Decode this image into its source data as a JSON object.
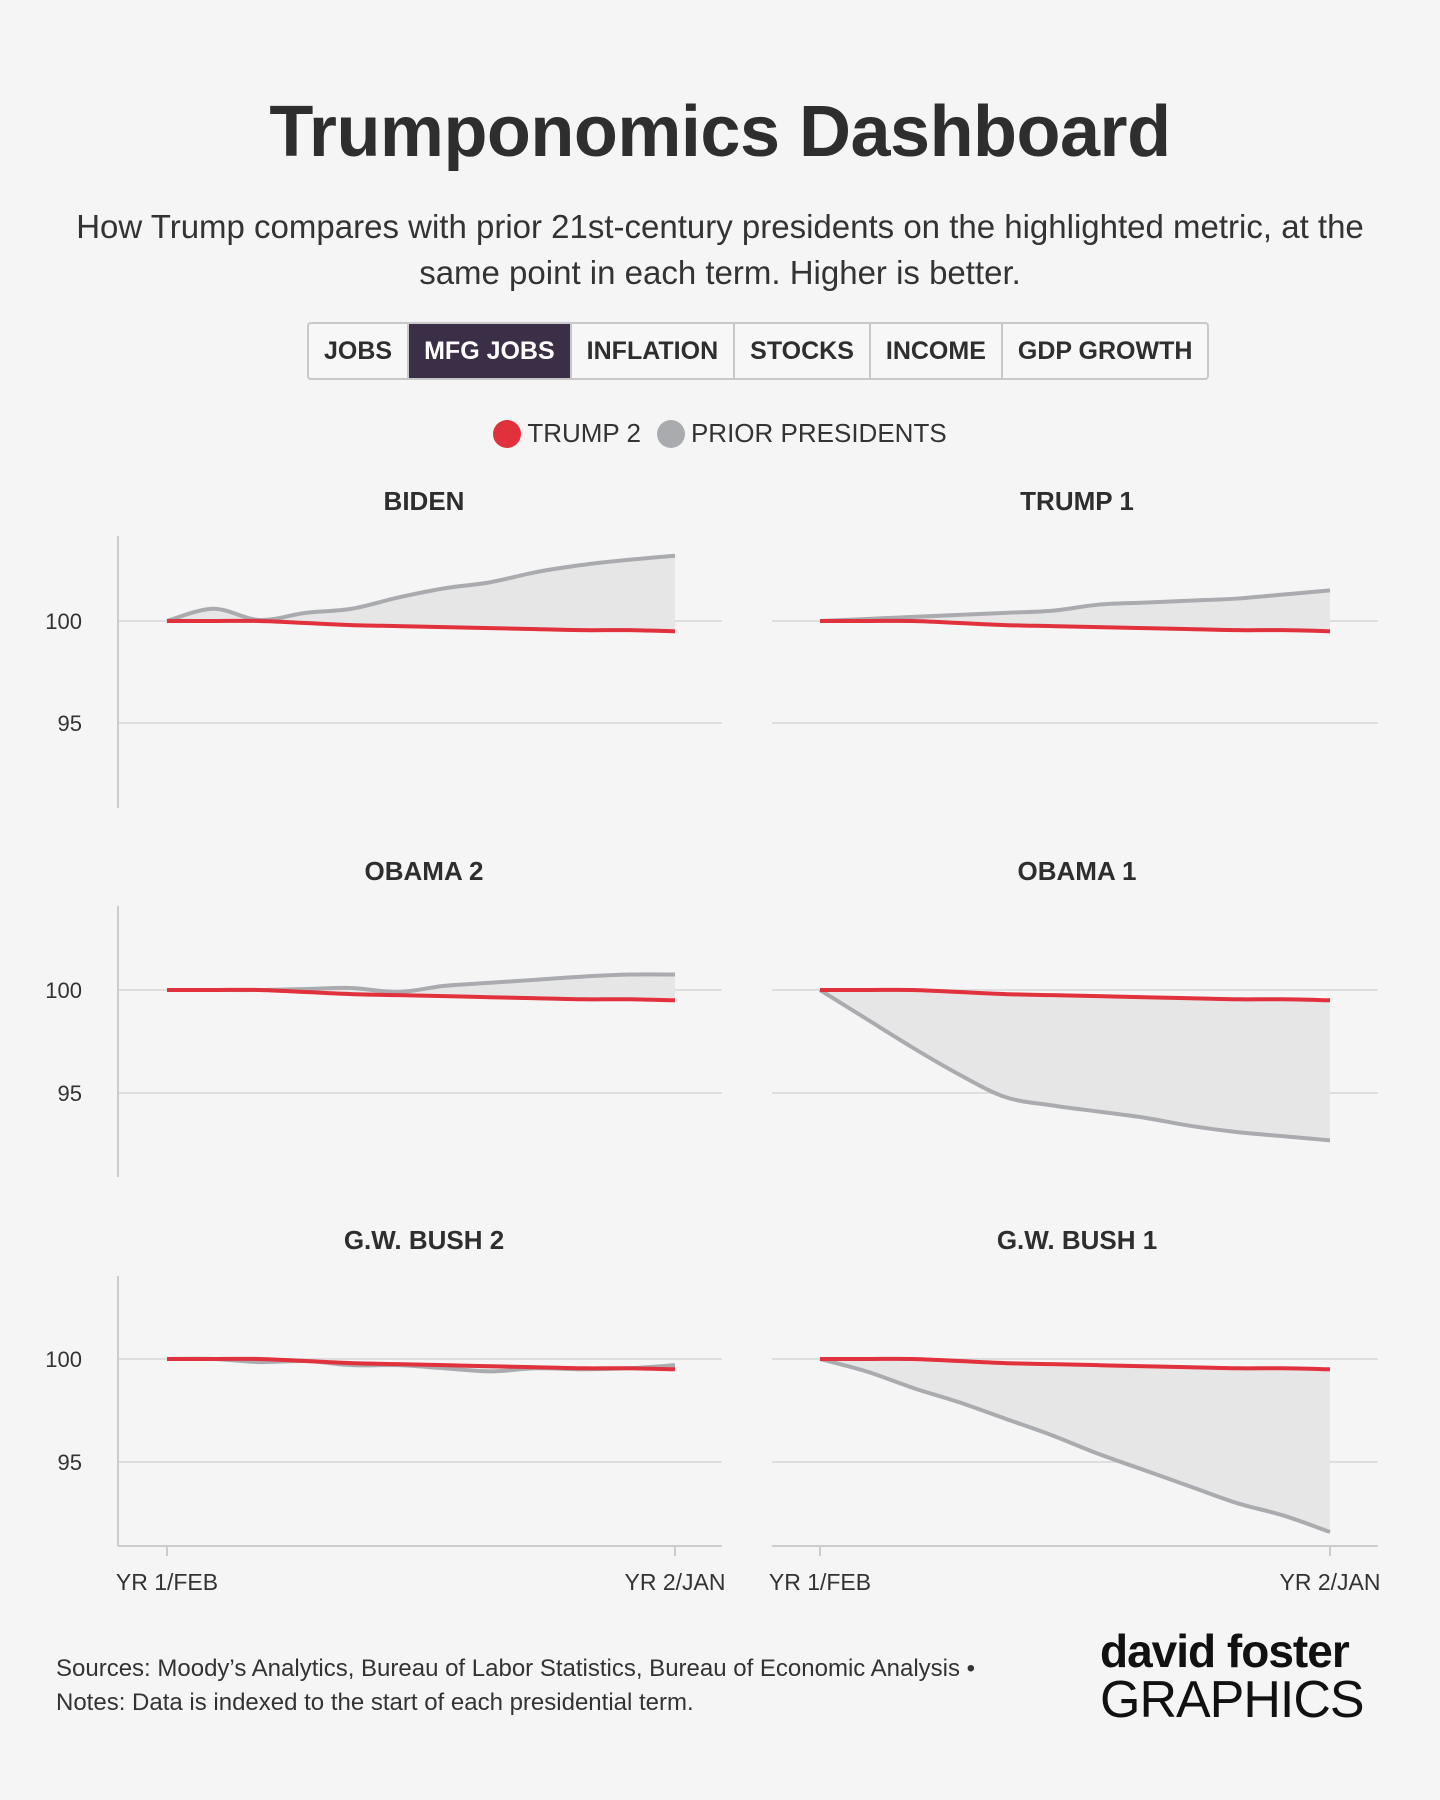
{
  "header": {
    "title": "Trumponomics Dashboard",
    "subtitle": "How Trump compares with prior 21st-century presidents on the highlighted metric, at the same point in each term. Higher is better."
  },
  "tabs": [
    {
      "label": "JOBS",
      "active": false
    },
    {
      "label": "MFG JOBS",
      "active": true
    },
    {
      "label": "INFLATION",
      "active": false
    },
    {
      "label": "STOCKS",
      "active": false
    },
    {
      "label": "INCOME",
      "active": false
    },
    {
      "label": "GDP GROWTH",
      "active": false
    }
  ],
  "legend": {
    "trump2": {
      "label": "TRUMP 2",
      "color": "#e0313d"
    },
    "prior": {
      "label": "PRIOR PRESIDENTS",
      "color": "#a9abaf"
    }
  },
  "footer": {
    "line1": "Sources: Moody’s Analytics, Bureau of Labor Statistics, Bureau of Economic Analysis •",
    "line2": "Notes: Data is indexed to the start of each presidential term."
  },
  "logo": {
    "top": "david foster",
    "bottom": "GRAPHICS"
  },
  "chart_data": {
    "type": "line",
    "layout": "small-multiples",
    "x_start_label": "YR 1/FEB",
    "x_end_label": "YR 2/JAN",
    "months": 12,
    "yticks": [
      95,
      100
    ],
    "ylim": [
      91,
      104
    ],
    "trump2": [
      100,
      100,
      100,
      99.9,
      99.8,
      99.75,
      99.7,
      99.65,
      99.6,
      99.55,
      99.55,
      99.5
    ],
    "panels": [
      {
        "name": "BIDEN",
        "values": [
          100,
          100.6,
          100.05,
          100.4,
          100.6,
          101.15,
          101.6,
          101.9,
          102.4,
          102.75,
          103.0,
          103.2
        ]
      },
      {
        "name": "TRUMP 1",
        "values": [
          100,
          100.1,
          100.2,
          100.3,
          100.4,
          100.5,
          100.8,
          100.9,
          101.0,
          101.1,
          101.3,
          101.5
        ]
      },
      {
        "name": "OBAMA 2",
        "values": [
          100,
          100.0,
          100.0,
          100.05,
          100.1,
          99.9,
          100.2,
          100.35,
          100.5,
          100.65,
          100.75,
          100.75
        ]
      },
      {
        "name": "OBAMA 1",
        "values": [
          100,
          98.6,
          97.2,
          95.9,
          94.8,
          94.4,
          94.1,
          93.8,
          93.4,
          93.1,
          92.9,
          92.7
        ]
      },
      {
        "name": "G.W. BUSH 2",
        "values": [
          100,
          100.0,
          99.85,
          99.9,
          99.7,
          99.7,
          99.55,
          99.4,
          99.55,
          99.5,
          99.55,
          99.7
        ]
      },
      {
        "name": "G.W. BUSH 1",
        "values": [
          100,
          99.4,
          98.6,
          97.9,
          97.1,
          96.3,
          95.4,
          94.6,
          93.8,
          93.0,
          92.4,
          91.6
        ]
      }
    ]
  }
}
